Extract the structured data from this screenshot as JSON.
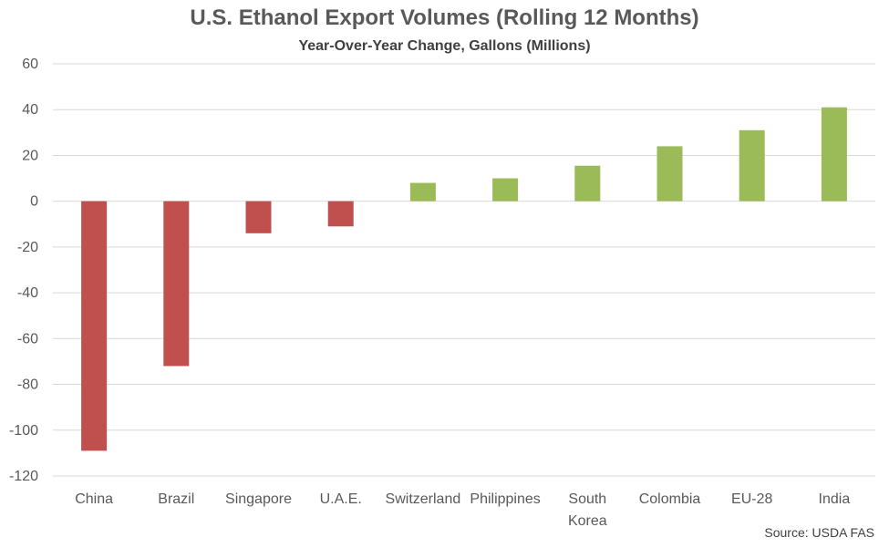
{
  "chart_data": {
    "type": "bar",
    "title": "U.S. Ethanol Export Volumes (Rolling 12 Months)",
    "subtitle": "Year-Over-Year Change, Gallons  (Millions)",
    "source": "Source: USDA FAS",
    "categories": [
      "China",
      "Brazil",
      "Singapore",
      "U.A.E.",
      "Switzerland",
      "Philippines",
      "South Korea",
      "Colombia",
      "EU-28",
      "India"
    ],
    "category_lines": [
      [
        "China"
      ],
      [
        "Brazil"
      ],
      [
        "Singapore"
      ],
      [
        "U.A.E."
      ],
      [
        "Switzerland"
      ],
      [
        "Philippines"
      ],
      [
        "South",
        "Korea"
      ],
      [
        "Colombia"
      ],
      [
        "EU-28"
      ],
      [
        "India"
      ]
    ],
    "values": [
      -109,
      -72,
      -14,
      -11,
      8,
      10,
      15.5,
      24,
      31,
      41
    ],
    "ylim": [
      -120,
      60
    ],
    "yticks": [
      60,
      40,
      20,
      0,
      -20,
      -40,
      -60,
      -80,
      -100,
      -120
    ],
    "grid": true,
    "legend": "none",
    "colors": {
      "negative": "#c0504d",
      "positive": "#9bbb59",
      "grid": "#d9d9d9",
      "tick_text": "#595959"
    }
  }
}
